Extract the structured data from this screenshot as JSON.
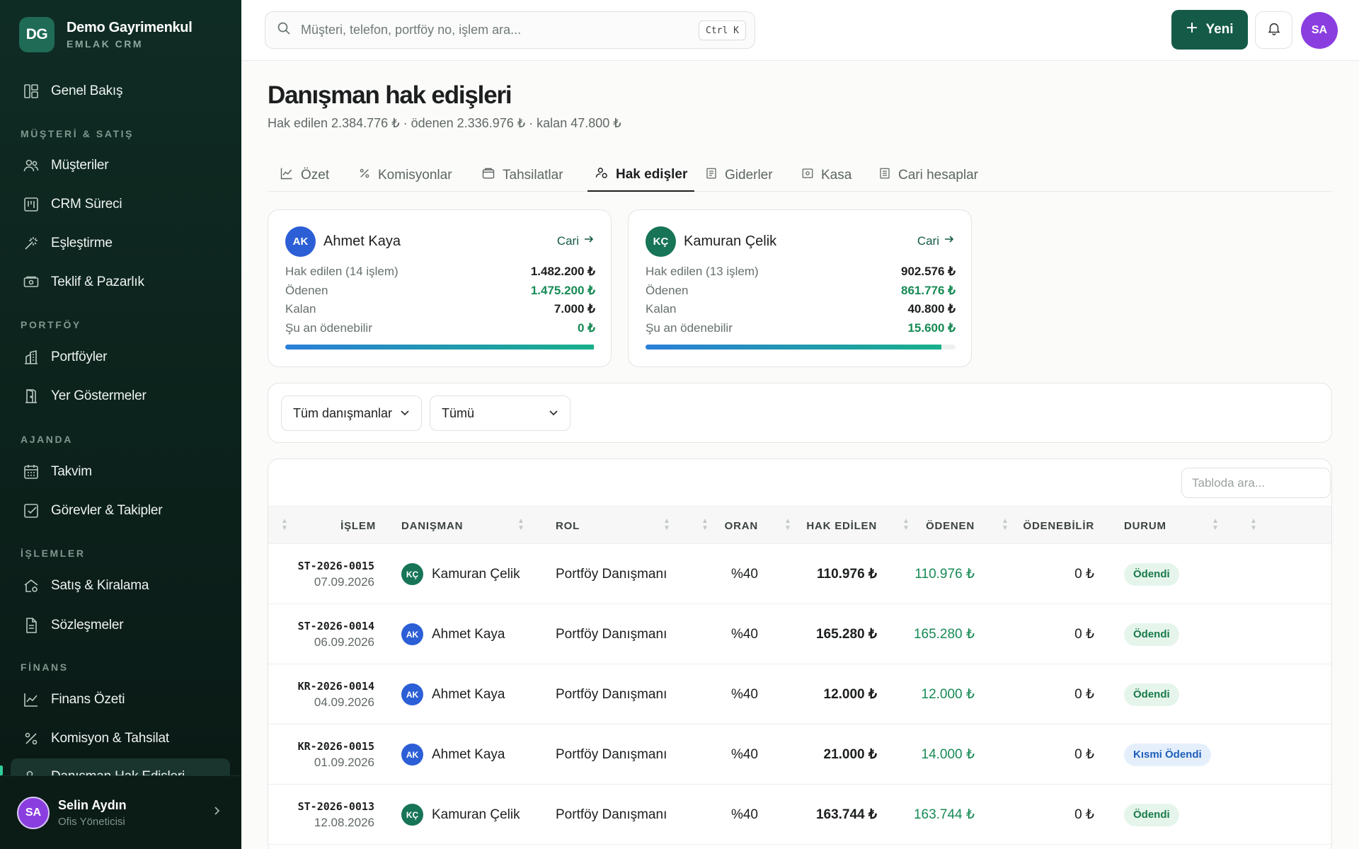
{
  "brand": {
    "initials": "DG",
    "name": "Demo Gayrimenkul",
    "sub": "EMLAK CRM"
  },
  "sidebar": {
    "overview": "Genel Bakış",
    "sections": {
      "sales": "MÜŞTERİ & SATIŞ",
      "portfolio": "PORTFÖY",
      "agenda": "AJANDA",
      "ops": "İŞLEMLER",
      "finance": "FİNANS"
    },
    "items": {
      "customers": "Müşteriler",
      "crm": "CRM Süreci",
      "matching": "Eşleştirme",
      "offer": "Teklif & Pazarlık",
      "portfolios": "Portföyler",
      "showings": "Yer Göstermeler",
      "calendar": "Takvim",
      "tasks": "Görevler & Takipler",
      "sales_rental": "Satış & Kiralama",
      "contracts": "Sözleşmeler",
      "finance_summary": "Finans Özeti",
      "commission": "Komisyon & Tahsilat",
      "advisor_payments": "Danışman Hak Edişleri"
    },
    "user": {
      "initials": "SA",
      "name": "Selin Aydın",
      "role": "Ofis Yöneticisi"
    }
  },
  "topbar": {
    "search_placeholder": "Müşteri, telefon, portföy no, işlem ara...",
    "shortcut": "Ctrl K",
    "new_label": "Yeni",
    "avatar": "SA"
  },
  "page": {
    "title": "Danışman hak edişleri",
    "subtitle": "Hak edilen 2.384.776 ₺ · ödenen 2.336.976 ₺ · kalan 47.800 ₺"
  },
  "tabs": [
    "Özet",
    "Komisyonlar",
    "Tahsilatlar",
    "Hak edişler",
    "Giderler",
    "Kasa",
    "Cari hesaplar"
  ],
  "colors": {
    "accent": "#145a47",
    "paid": "#178a55",
    "avatar_ak": "#2c5fd6",
    "avatar_kc": "#177457"
  },
  "cards": [
    {
      "initials": "AK",
      "name": "Ahmet Kaya",
      "link": "Cari",
      "earned_label": "Hak edilen (14 işlem)",
      "earned": "1.482.200 ₺",
      "paid_label": "Ödenen",
      "paid": "1.475.200 ₺",
      "remaining_label": "Kalan",
      "remaining": "7.000 ₺",
      "payable_label": "Şu an ödenebilir",
      "payable": "0 ₺",
      "progress": 0.995
    },
    {
      "initials": "KÇ",
      "name": "Kamuran Çelik",
      "link": "Cari",
      "earned_label": "Hak edilen (13 işlem)",
      "earned": "902.576 ₺",
      "paid_label": "Ödenen",
      "paid": "861.776 ₺",
      "remaining_label": "Kalan",
      "remaining": "40.800 ₺",
      "payable_label": "Şu an ödenebilir",
      "payable": "15.600 ₺",
      "progress": 0.955
    }
  ],
  "filters": {
    "advisor": "Tüm danışmanlar",
    "status": "Tümü"
  },
  "table": {
    "search_placeholder": "Tabloda ara...",
    "headers": [
      "İŞLEM",
      "DANIŞMAN",
      "ROL",
      "ORAN",
      "HAK EDİLEN",
      "ÖDENEN",
      "ÖDENEBİLİR",
      "DURUM"
    ],
    "rows": [
      {
        "code": "ST-2026-0015",
        "date": "07.09.2026",
        "initials": "KÇ",
        "advisor": "Kamuran Çelik",
        "role": "Portföy Danışmanı",
        "rate": "%40",
        "earned": "110.976 ₺",
        "paid": "110.976 ₺",
        "payable": "0 ₺",
        "status": "Ödendi"
      },
      {
        "code": "ST-2026-0014",
        "date": "06.09.2026",
        "initials": "AK",
        "advisor": "Ahmet Kaya",
        "role": "Portföy Danışmanı",
        "rate": "%40",
        "earned": "165.280 ₺",
        "paid": "165.280 ₺",
        "payable": "0 ₺",
        "status": "Ödendi"
      },
      {
        "code": "KR-2026-0014",
        "date": "04.09.2026",
        "initials": "AK",
        "advisor": "Ahmet Kaya",
        "role": "Portföy Danışmanı",
        "rate": "%40",
        "earned": "12.000 ₺",
        "paid": "12.000 ₺",
        "payable": "0 ₺",
        "status": "Ödendi"
      },
      {
        "code": "KR-2026-0015",
        "date": "01.09.2026",
        "initials": "AK",
        "advisor": "Ahmet Kaya",
        "role": "Portföy Danışmanı",
        "rate": "%40",
        "earned": "21.000 ₺",
        "paid": "14.000 ₺",
        "payable": "0 ₺",
        "status": "Kısmi Ödendi"
      },
      {
        "code": "ST-2026-0013",
        "date": "12.08.2026",
        "initials": "KÇ",
        "advisor": "Kamuran Çelik",
        "role": "Portföy Danışmanı",
        "rate": "%40",
        "earned": "163.744 ₺",
        "paid": "163.744 ₺",
        "payable": "0 ₺",
        "status": "Ödendi"
      }
    ]
  }
}
